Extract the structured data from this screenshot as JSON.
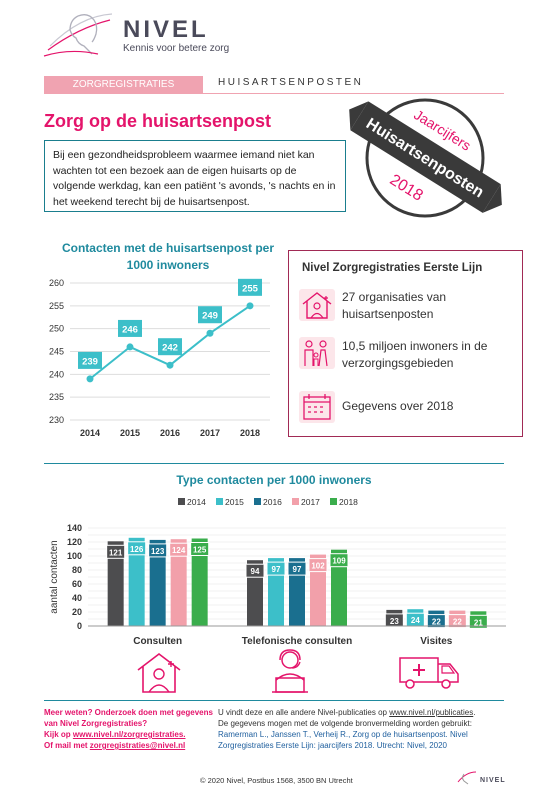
{
  "brand": {
    "name": "NIVEL",
    "tagline": "Kennis voor betere zorg",
    "footer_logo": "NIVEL"
  },
  "header": {
    "tag": "ZORGREGISTRATIES",
    "section": "HUISARTSENPOSTEN"
  },
  "title": "Zorg op de huisartsenpost",
  "banner": {
    "line1": "Jaarcijfers",
    "line2": "Huisartsenposten",
    "line3": "2018"
  },
  "intro": "Bij een gezondheidsprobleem waarmee iemand niet kan wachten tot een bezoek aan de eigen huisarts op de volgende werkdag, kan een patiënt 's avonds, 's nachts en in het weekend terecht bij de huisartsenpost.",
  "info": {
    "title": "Nivel Zorgregistraties Eerste Lijn",
    "items": [
      {
        "text": "27 organisaties van huisartsenposten",
        "icon": "house-doctor-icon"
      },
      {
        "text": "10,5 miljoen inwoners in de verzorgingsgebieden",
        "icon": "family-icon"
      },
      {
        "text": "Gegevens over 2018",
        "icon": "calendar-icon"
      }
    ]
  },
  "chart_data": [
    {
      "type": "line",
      "title": "Contacten met de huisartsenpost per 1000 inwoners",
      "x": [
        "2014",
        "2015",
        "2016",
        "2017",
        "2018"
      ],
      "values": [
        239,
        246,
        242,
        249,
        255
      ],
      "ylim": [
        230,
        260
      ],
      "yticks": [
        230,
        235,
        240,
        245,
        250,
        255,
        260
      ],
      "grid": true,
      "color": "#3cbfc9"
    },
    {
      "type": "bar",
      "title": "Type contacten per 1000 inwoners",
      "ylabel": "aantal contacten",
      "ylim": [
        0,
        140
      ],
      "yticks": [
        0,
        10,
        20,
        30,
        40,
        50,
        60,
        70,
        80,
        90,
        100,
        110,
        120,
        130,
        140
      ],
      "categories": [
        "Consulten",
        "Telefonische consulten",
        "Visites"
      ],
      "series": [
        {
          "name": "2014",
          "color": "#4d4d4f",
          "values": [
            121,
            94,
            23
          ]
        },
        {
          "name": "2015",
          "color": "#3cbfc9",
          "values": [
            126,
            97,
            24
          ]
        },
        {
          "name": "2016",
          "color": "#1a6f8f",
          "values": [
            123,
            97,
            22
          ]
        },
        {
          "name": "2017",
          "color": "#f2a0aa",
          "values": [
            124,
            102,
            22
          ]
        },
        {
          "name": "2018",
          "color": "#3aad4c",
          "values": [
            125,
            109,
            21
          ]
        }
      ],
      "legend": "top",
      "category_icons": [
        "house-doctor-icon",
        "telephone-doctor-icon",
        "ambulance-icon"
      ]
    }
  ],
  "footer": {
    "left_line1": "Meer weten? Onderzoek doen met gegevens van Nivel Zorgregistraties?",
    "left_line2_prefix": "Kijk op ",
    "left_link": "www.nivel.nl/zorgregistraties.",
    "left_line3_prefix": "Of mail met ",
    "left_mail": "zorgregistraties@nivel.nl",
    "right_line1_prefix": "U vindt deze en alle andere Nivel-publicaties op ",
    "right_link": "www.nivel.nl/publicaties",
    "right_line1_suffix": ".",
    "right_line2": "De gegevens mogen met de volgende bronvermelding worden gebruikt:",
    "right_citation": "Ramerman L., Janssen T., Verheij R., Zorg op de huisartsenpost. Nivel Zorgregistraties Eerste Lijn: jaarcijfers 2018. Utrecht: Nivel, 2020",
    "copyright": "© 2020 Nivel, Postbus 1568, 3500 BN Utrecht"
  },
  "colors": {
    "pink": "#e4146b",
    "teal": "#1f8a9e",
    "maroon": "#a12a55"
  }
}
